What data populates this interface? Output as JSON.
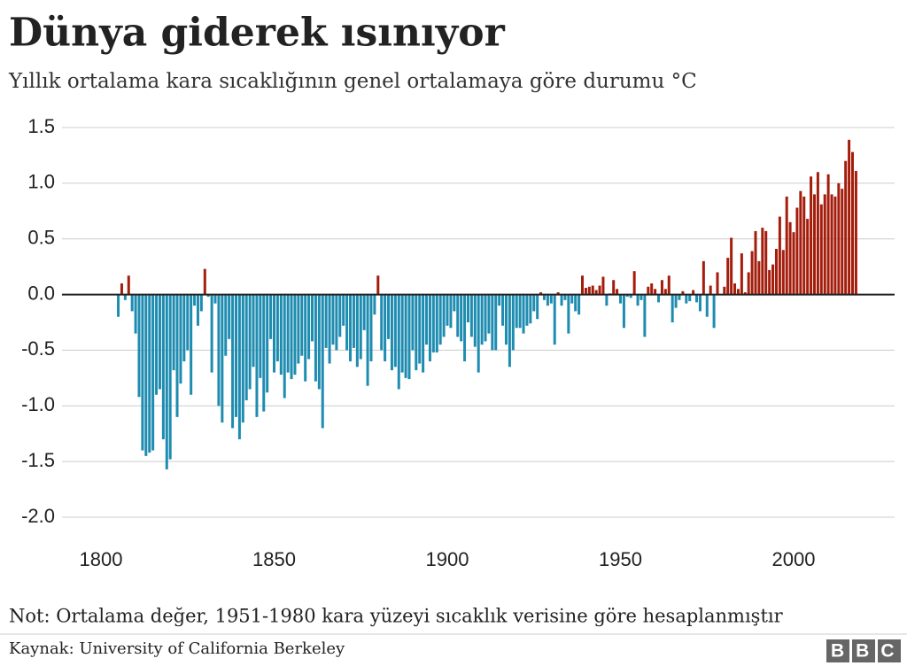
{
  "chart_data": {
    "type": "bar",
    "title": "Dünya giderek ısınıyor",
    "subtitle": "Yıllık ortalama kara sıcaklığının genel ortalamaya göre durumu °C",
    "note": "Not: Ortalama değer, 1951-1980 kara yüzeyi sıcaklık verisine göre hesaplanmıştır",
    "source": "Kaynak: University of California Berkeley",
    "logo": "BBC",
    "positive_color": "#a41d0c",
    "negative_color": "#1e8cb0",
    "grid": true,
    "xlim": [
      1788.75,
      2029.15
    ],
    "xticks": [
      1800,
      1850,
      1900,
      1950,
      2000
    ],
    "ylim": [
      -2.0,
      1.5
    ],
    "yticks": [
      {
        "value": -2.0,
        "label": "-2.0"
      },
      -1.5,
      {
        "value": -1.0,
        "label": "-1.0"
      },
      -0.5,
      {
        "value": 0,
        "label": "0.0"
      },
      0.5,
      {
        "value": 1.0,
        "label": "1.0"
      },
      1.5
    ],
    "x": [
      1805,
      1806,
      1807,
      1808,
      1809,
      1810,
      1811,
      1812,
      1813,
      1814,
      1815,
      1816,
      1817,
      1818,
      1819,
      1820,
      1821,
      1822,
      1823,
      1824,
      1825,
      1826,
      1827,
      1828,
      1829,
      1830,
      1831,
      1832,
      1833,
      1834,
      1835,
      1836,
      1837,
      1838,
      1839,
      1840,
      1841,
      1842,
      1843,
      1844,
      1845,
      1846,
      1847,
      1848,
      1849,
      1850,
      1851,
      1852,
      1853,
      1854,
      1855,
      1856,
      1857,
      1858,
      1859,
      1860,
      1861,
      1862,
      1863,
      1864,
      1865,
      1866,
      1867,
      1868,
      1869,
      1870,
      1871,
      1872,
      1873,
      1874,
      1875,
      1876,
      1877,
      1878,
      1879,
      1880,
      1881,
      1882,
      1883,
      1884,
      1885,
      1886,
      1887,
      1888,
      1889,
      1890,
      1891,
      1892,
      1893,
      1894,
      1895,
      1896,
      1897,
      1898,
      1899,
      1900,
      1901,
      1902,
      1903,
      1904,
      1905,
      1906,
      1907,
      1908,
      1909,
      1910,
      1911,
      1912,
      1913,
      1914,
      1915,
      1916,
      1917,
      1918,
      1919,
      1920,
      1921,
      1922,
      1923,
      1924,
      1925,
      1926,
      1927,
      1928,
      1929,
      1930,
      1931,
      1932,
      1933,
      1934,
      1935,
      1936,
      1937,
      1938,
      1939,
      1940,
      1941,
      1942,
      1943,
      1944,
      1945,
      1946,
      1947,
      1948,
      1949,
      1950,
      1951,
      1952,
      1953,
      1954,
      1955,
      1956,
      1957,
      1958,
      1959,
      1960,
      1961,
      1962,
      1963,
      1964,
      1965,
      1966,
      1967,
      1968,
      1969,
      1970,
      1971,
      1972,
      1973,
      1974,
      1975,
      1976,
      1977,
      1978,
      1979,
      1980,
      1981,
      1982,
      1983,
      1984,
      1985,
      1986,
      1987,
      1988,
      1989,
      1990,
      1991,
      1992,
      1993,
      1994,
      1995,
      1996,
      1997,
      1998,
      1999,
      2000,
      2001,
      2002,
      2003,
      2004,
      2005,
      2006,
      2007,
      2008,
      2009,
      2010,
      2011,
      2012,
      2013,
      2014,
      2015,
      2016,
      2017,
      2018
    ],
    "values": [
      -0.2,
      0.1,
      -0.05,
      0.17,
      -0.15,
      -0.35,
      -0.92,
      -1.4,
      -1.45,
      -1.42,
      -1.4,
      -0.9,
      -0.85,
      -1.3,
      -1.57,
      -1.48,
      -0.68,
      -1.1,
      -0.8,
      -0.6,
      -0.5,
      -0.9,
      -0.1,
      -0.28,
      -0.15,
      0.23,
      -0.02,
      -0.7,
      -0.08,
      -1.0,
      -1.15,
      -0.55,
      -0.4,
      -1.2,
      -1.1,
      -1.3,
      -1.15,
      -0.95,
      -0.85,
      -0.65,
      -1.1,
      -0.75,
      -1.05,
      -0.88,
      -0.4,
      -0.7,
      -0.6,
      -0.72,
      -0.93,
      -0.7,
      -0.76,
      -0.72,
      -0.62,
      -0.55,
      -0.78,
      -0.58,
      -0.42,
      -0.78,
      -0.85,
      -1.2,
      -0.48,
      -0.62,
      -0.45,
      -0.5,
      -0.38,
      -0.28,
      -0.5,
      -0.6,
      -0.48,
      -0.65,
      -0.58,
      -0.32,
      -0.82,
      -0.6,
      -0.18,
      0.17,
      -0.5,
      -0.6,
      -0.4,
      -0.68,
      -0.65,
      -0.85,
      -0.7,
      -0.75,
      -0.76,
      -0.5,
      -0.68,
      -0.62,
      -0.7,
      -0.45,
      -0.6,
      -0.52,
      -0.52,
      -0.45,
      -0.38,
      -0.28,
      -0.3,
      -0.15,
      -0.38,
      -0.42,
      -0.6,
      -0.25,
      -0.38,
      -0.47,
      -0.7,
      -0.45,
      -0.42,
      -0.35,
      -0.5,
      -0.5,
      -0.1,
      -0.28,
      -0.45,
      -0.65,
      -0.5,
      -0.3,
      -0.3,
      -0.35,
      -0.28,
      -0.26,
      -0.15,
      -0.22,
      0.02,
      -0.05,
      -0.1,
      -0.08,
      -0.45,
      0.02,
      -0.1,
      -0.05,
      -0.35,
      -0.08,
      -0.15,
      -0.18,
      0.17,
      0.06,
      0.07,
      0.08,
      0.04,
      0.08,
      0.16,
      -0.1,
      0.01,
      0.13,
      0.05,
      -0.08,
      -0.3,
      -0.02,
      -0.03,
      0.21,
      -0.1,
      -0.05,
      -0.38,
      0.07,
      0.1,
      0.05,
      -0.07,
      0.13,
      0.05,
      0.17,
      -0.25,
      -0.12,
      -0.05,
      0.03,
      -0.08,
      -0.06,
      0.04,
      -0.07,
      -0.15,
      0.3,
      -0.2,
      0.08,
      -0.3,
      0.2,
      0.0,
      0.07,
      0.33,
      0.51,
      0.1,
      0.05,
      0.37,
      0.02,
      0.2,
      0.39,
      0.57,
      0.3,
      0.6,
      0.57,
      0.22,
      0.27,
      0.41,
      0.7,
      0.4,
      0.88,
      0.65,
      0.56,
      0.78,
      0.93,
      0.88,
      0.68,
      1.06,
      0.9,
      1.1,
      0.81,
      0.9,
      1.08,
      0.9,
      0.88,
      1.0,
      0.95,
      1.2,
      1.39,
      1.28,
      1.11
    ]
  }
}
